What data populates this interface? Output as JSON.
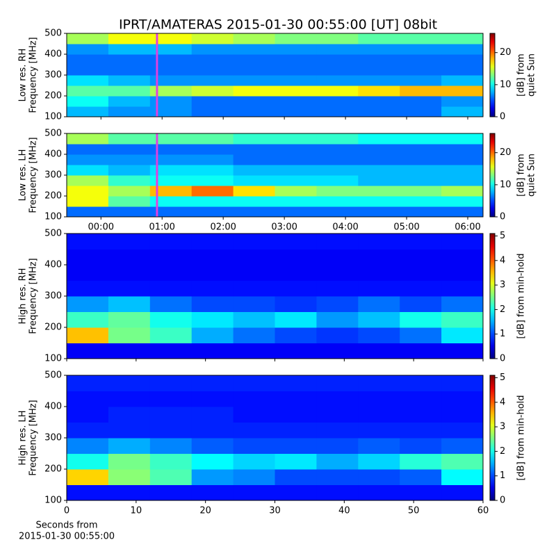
{
  "chart_data": [
    {
      "type": "heatmap",
      "title": "IPRT/AMATERAS 2015-01-30 00:55:00 [UT]   08bit",
      "ylabel": [
        "Low res. RH",
        "Frequency [MHz]"
      ],
      "colorbar_label": [
        "[dB] from",
        "quiet Sun"
      ],
      "colormap": "jet",
      "xlim": [
        -0.56,
        6.25
      ],
      "xticks": [
        0,
        1,
        2,
        3,
        4,
        5,
        6
      ],
      "xticklabels": false,
      "ylim": [
        100,
        500
      ],
      "yticks": [
        100,
        200,
        300,
        400,
        500
      ],
      "clim": [
        0,
        26
      ],
      "cticks": [
        0,
        10,
        20
      ],
      "marker_x": 0.917,
      "marker_color": "#e040e0",
      "z": [
        [
          8,
          7,
          7,
          6,
          6,
          6,
          6,
          6,
          6,
          8
        ],
        [
          10,
          8,
          7,
          6,
          6,
          6,
          6,
          6,
          6,
          7
        ],
        [
          12,
          12,
          14,
          15,
          16,
          16,
          16,
          17,
          18,
          18
        ],
        [
          9,
          8,
          7,
          7,
          7,
          7,
          7,
          7,
          7,
          8
        ],
        [
          6,
          6,
          6,
          6,
          6,
          6,
          6,
          6,
          6,
          6
        ],
        [
          6,
          6,
          6,
          6,
          6,
          6,
          6,
          6,
          6,
          6
        ],
        [
          7,
          8,
          8,
          7,
          7,
          7,
          7,
          7,
          7,
          7
        ],
        [
          14,
          16,
          16,
          15,
          14,
          13,
          13,
          12,
          12,
          12
        ]
      ]
    },
    {
      "type": "heatmap",
      "ylabel": [
        "Low res. LH",
        "Frequency [MHz]"
      ],
      "colorbar_label": [
        "[dB] from",
        "quiet Sun"
      ],
      "colormap": "jet",
      "xlim": [
        -0.56,
        6.25
      ],
      "xticks": [
        {
          "value": 0,
          "label": "00:00"
        },
        {
          "value": 1,
          "label": "01:00"
        },
        {
          "value": 2,
          "label": "02:00"
        },
        {
          "value": 3,
          "label": "03:00"
        },
        {
          "value": 4,
          "label": "04:00"
        },
        {
          "value": 5,
          "label": "05:00"
        },
        {
          "value": 6,
          "label": "06:00"
        }
      ],
      "ylim": [
        100,
        500
      ],
      "yticks": [
        100,
        200,
        300,
        400,
        500
      ],
      "clim": [
        0,
        26
      ],
      "cticks": [
        0,
        10,
        20
      ],
      "marker_x": 0.917,
      "marker_color": "#e040e0",
      "z": [
        [
          6,
          6,
          6,
          6,
          6,
          6,
          6,
          6,
          6,
          6
        ],
        [
          16,
          12,
          10,
          10,
          10,
          10,
          10,
          10,
          10,
          10
        ],
        [
          16,
          14,
          18,
          20,
          17,
          14,
          13,
          13,
          13,
          14
        ],
        [
          14,
          11,
          10,
          10,
          9,
          9,
          9,
          8,
          8,
          8
        ],
        [
          9,
          8,
          9,
          9,
          8,
          8,
          8,
          8,
          8,
          8
        ],
        [
          7,
          7,
          7,
          7,
          6,
          6,
          6,
          6,
          6,
          6
        ],
        [
          6,
          6,
          6,
          6,
          6,
          6,
          6,
          6,
          6,
          6
        ],
        [
          14,
          12,
          12,
          12,
          11,
          11,
          11,
          10,
          10,
          10
        ]
      ]
    },
    {
      "type": "heatmap",
      "ylabel": [
        "High res. RH",
        "Frequency [MHz]"
      ],
      "colorbar_label": [
        "[dB] from min-hold"
      ],
      "colormap": "jet",
      "xlim": [
        0,
        60
      ],
      "xticks": [
        0,
        10,
        20,
        30,
        40,
        50,
        60
      ],
      "xticklabels": false,
      "ylim": [
        100,
        500
      ],
      "yticks": [
        100,
        200,
        300,
        400,
        500
      ],
      "clim": [
        0,
        5.1
      ],
      "cticks": [
        0,
        1,
        2,
        3,
        4,
        5
      ],
      "z": [
        [
          0.6,
          0.6,
          0.6,
          0.6,
          0.6,
          0.6,
          0.6,
          0.6,
          0.6,
          0.6
        ],
        [
          3.5,
          2.5,
          2.2,
          1.5,
          1.2,
          1.0,
          0.9,
          1.0,
          1.2,
          1.8
        ],
        [
          2.2,
          2.4,
          2.0,
          1.8,
          1.6,
          1.8,
          1.4,
          1.6,
          2.0,
          2.2
        ],
        [
          1.4,
          1.6,
          1.2,
          1.0,
          1.0,
          0.9,
          1.0,
          1.2,
          1.0,
          1.2
        ],
        [
          0.7,
          0.7,
          0.7,
          0.7,
          0.7,
          0.7,
          0.7,
          0.7,
          0.7,
          0.7
        ],
        [
          0.6,
          0.6,
          0.6,
          0.6,
          0.6,
          0.6,
          0.6,
          0.6,
          0.6,
          0.6
        ],
        [
          0.6,
          0.6,
          0.6,
          0.6,
          0.6,
          0.6,
          0.6,
          0.6,
          0.6,
          0.6
        ],
        [
          0.7,
          0.7,
          0.7,
          0.7,
          0.7,
          0.7,
          0.7,
          0.7,
          0.7,
          0.7
        ]
      ]
    },
    {
      "type": "heatmap",
      "ylabel": [
        "High res. LH",
        "Frequency [MHz]"
      ],
      "colorbar_label": [
        "[dB] from min-hold"
      ],
      "colormap": "jet",
      "xlim": [
        0,
        60
      ],
      "xticks": [
        0,
        10,
        20,
        30,
        40,
        50,
        60
      ],
      "ylim": [
        100,
        500
      ],
      "yticks": [
        100,
        200,
        300,
        400,
        500
      ],
      "clim": [
        0,
        5.1
      ],
      "cticks": [
        0,
        1,
        2,
        3,
        4,
        5
      ],
      "xlabel": [
        "Seconds from",
        "2015-01-30 00:55:00"
      ],
      "z": [
        [
          0.7,
          0.7,
          0.7,
          0.7,
          0.7,
          0.7,
          0.7,
          0.7,
          0.7,
          0.7
        ],
        [
          3.4,
          2.6,
          2.3,
          1.4,
          1.3,
          1.0,
          1.0,
          1.0,
          1.1,
          1.9
        ],
        [
          2.0,
          2.5,
          2.2,
          1.9,
          1.7,
          1.8,
          1.5,
          1.7,
          2.1,
          2.3
        ],
        [
          1.3,
          1.5,
          1.3,
          1.1,
          1.0,
          1.0,
          1.0,
          1.1,
          1.0,
          1.1
        ],
        [
          0.8,
          0.8,
          0.8,
          0.8,
          0.8,
          0.8,
          0.8,
          0.8,
          0.8,
          0.8
        ],
        [
          0.7,
          0.8,
          0.8,
          0.8,
          0.7,
          0.7,
          0.7,
          0.7,
          0.7,
          0.7
        ],
        [
          0.7,
          0.7,
          0.7,
          0.7,
          0.7,
          0.7,
          0.7,
          0.7,
          0.7,
          0.7
        ],
        [
          0.8,
          0.8,
          0.8,
          0.8,
          0.8,
          0.8,
          0.8,
          0.8,
          0.8,
          0.8
        ]
      ]
    }
  ]
}
